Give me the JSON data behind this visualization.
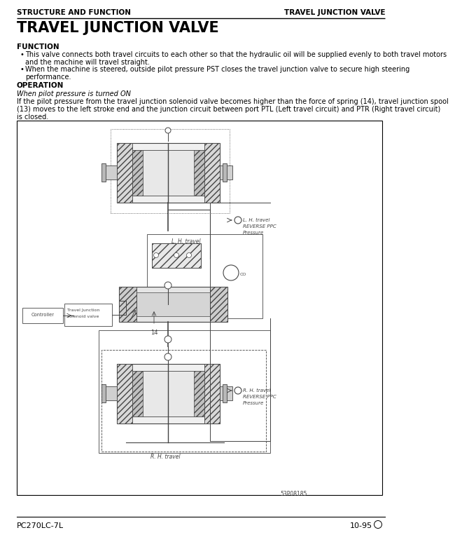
{
  "header_left": "STRUCTURE AND FUNCTION",
  "header_right": "TRAVEL JUNCTION VALVE",
  "title": "TRAVEL JUNCTION VALVE",
  "section1_label": "FUNCTION",
  "bullet1_line1": "This valve connects both travel circuits to each other so that the hydraulic oil will be supplied evenly to both travel motors",
  "bullet1_line2": "and the machine will travel straight.",
  "bullet2_line1": "When the machine is steered, outside pilot pressure PST closes the travel junction valve to secure high steering",
  "bullet2_line2": "performance.",
  "section2_label": "OPERATION",
  "op_italic": "When pilot pressure is turned ON",
  "op_line1": "If the pilot pressure from the travel junction solenoid valve becomes higher than the force of spring (14), travel junction spool",
  "op_line2": "(13) moves to the left stroke end and the junction circuit between port PTL (Left travel circuit) and PTR (Right travel circuit)",
  "op_line3": "is closed.",
  "lh_travel_label1": "L. H. travel",
  "lh_travel_label2": "REVERSE PPC",
  "lh_travel_label3": "Pressure",
  "rh_travel_label1": "R. H. travel",
  "rh_travel_label2": "REVERSE PPC",
  "rh_travel_label3": "Pressure",
  "lh_travel_pipe": "L. H. travel",
  "rh_travel_pipe": "R. H. travel",
  "controller_label": "Controller",
  "tjv_label1": "Travel Junction",
  "tjv_label2": "solenoid valve",
  "label_14": "14",
  "ref_num": "53P08185",
  "footer_left": "PC270LC-7L",
  "footer_right": "10-95",
  "bg_color": "#ffffff",
  "text_color": "#000000",
  "diagram_color": "#444444"
}
